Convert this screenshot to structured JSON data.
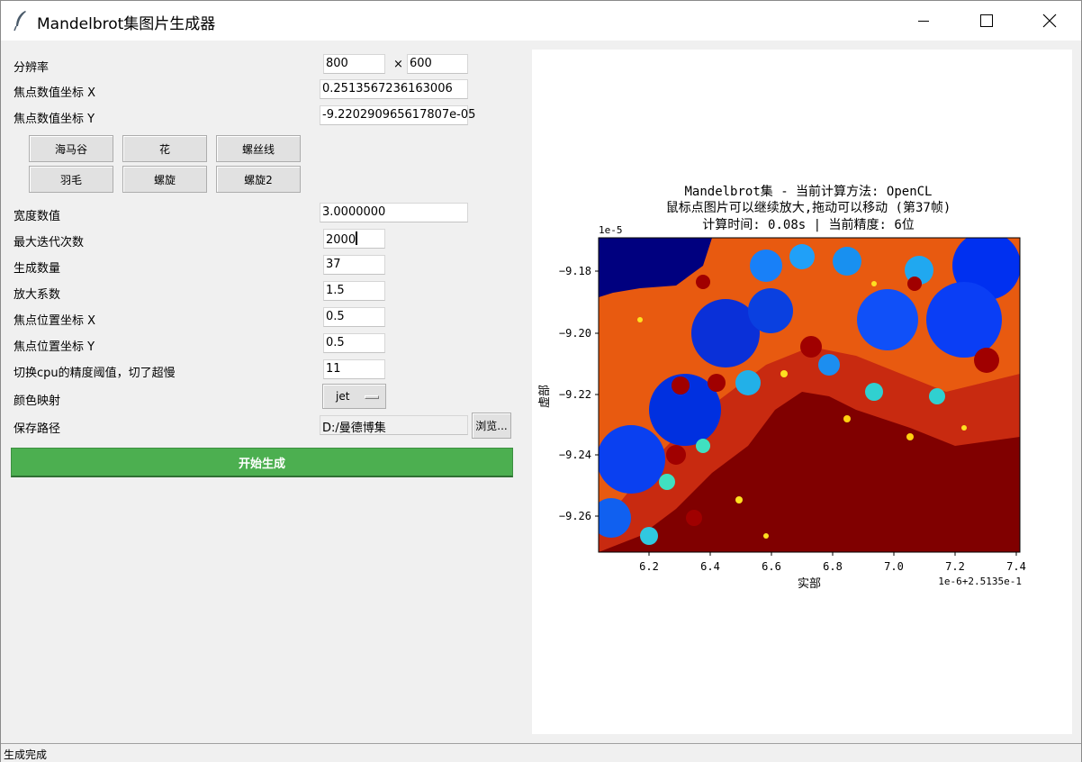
{
  "window": {
    "title": "Mandelbrot集图片生成器",
    "app_icon": "feather-icon",
    "controls": [
      "minimize-icon",
      "maximize-icon",
      "close-icon"
    ]
  },
  "form": {
    "resolution": {
      "label": "分辨率",
      "width": "800",
      "separator": "×",
      "height": "600"
    },
    "focus_x": {
      "label": "焦点数值坐标 X",
      "value": "0.2513567236163006"
    },
    "focus_y": {
      "label": "焦点数值坐标 Y",
      "value": "-9.220290965617807e-05"
    },
    "presets": [
      "海马谷",
      "花",
      "螺丝线",
      "羽毛",
      "螺旋",
      "螺旋2"
    ],
    "width_value": {
      "label": "宽度数值",
      "value": "3.0000000"
    },
    "max_iter": {
      "label": "最大迭代次数",
      "value": "2000"
    },
    "count": {
      "label": "生成数量",
      "value": "37"
    },
    "zoom_factor": {
      "label": "放大系数",
      "value": "1.5"
    },
    "focus_pos_x": {
      "label": "焦点位置坐标 X",
      "value": "0.5"
    },
    "focus_pos_y": {
      "label": "焦点位置坐标 Y",
      "value": "0.5"
    },
    "cpu_threshold": {
      "label": "切换cpu的精度阈值，切了超慢",
      "value": "11"
    },
    "colormap": {
      "label": "颜色映射",
      "value": "jet"
    },
    "save_path": {
      "label": "保存路径",
      "value": "D:/曼德博集",
      "browse_label": "浏览..."
    },
    "start_label": "开始生成"
  },
  "plot": {
    "title_lines": [
      "Mandelbrot集 - 当前计算方法: OpenCL",
      "鼠标点图片可以继续放大,拖动可以移动 (第37帧)",
      "计算时间: 0.08s | 当前精度: 6位"
    ],
    "xlabel": "实部",
    "ylabel": "虚部",
    "x_offset_label": "1e-6+2.5135e-1",
    "y_offset_label": "1e-5",
    "x_ticks": [
      "6.2",
      "6.4",
      "6.6",
      "6.8",
      "7.0",
      "7.2",
      "7.4"
    ],
    "y_ticks": [
      "−9.18",
      "−9.20",
      "−9.22",
      "−9.24",
      "−9.26"
    ],
    "colormap": "jet"
  },
  "status": {
    "text": "生成完成"
  }
}
